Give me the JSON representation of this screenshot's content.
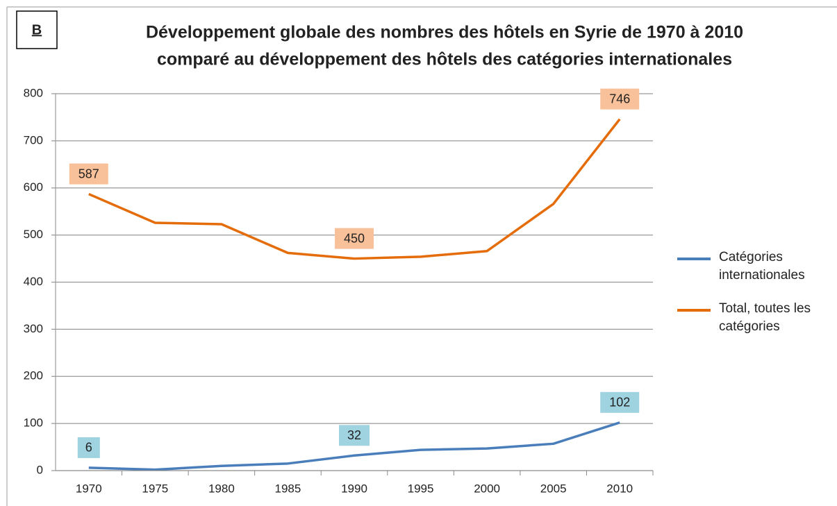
{
  "chart_data": {
    "type": "line",
    "panel_label": "B",
    "title": [
      "Développement globale des nombres des hôtels en Syrie de 1970 à 2010",
      "comparé au développement des hôtels des catégories internationales"
    ],
    "categories": [
      1970,
      1975,
      1980,
      1985,
      1990,
      1995,
      2000,
      2005,
      2010
    ],
    "series": [
      {
        "name": "Catégories internationales",
        "color": "#4a7ebb",
        "label_color": "#9fd3e0",
        "values": [
          6,
          2,
          10,
          15,
          32,
          44,
          47,
          57,
          102
        ],
        "value_labels": [
          "6",
          null,
          null,
          null,
          "32",
          null,
          null,
          null,
          "102"
        ]
      },
      {
        "name": "Total, toutes les catégories",
        "color": "#e46c0a",
        "label_color": "#f9c19a",
        "values": [
          587,
          526,
          523,
          462,
          450,
          454,
          466,
          566,
          746
        ],
        "value_labels": [
          "587",
          null,
          null,
          null,
          "450",
          null,
          null,
          null,
          "746"
        ]
      }
    ],
    "ylim": [
      0,
      800
    ],
    "yticks": [
      0,
      100,
      200,
      300,
      400,
      500,
      600,
      700,
      800
    ],
    "grid": true,
    "legend": "right"
  }
}
